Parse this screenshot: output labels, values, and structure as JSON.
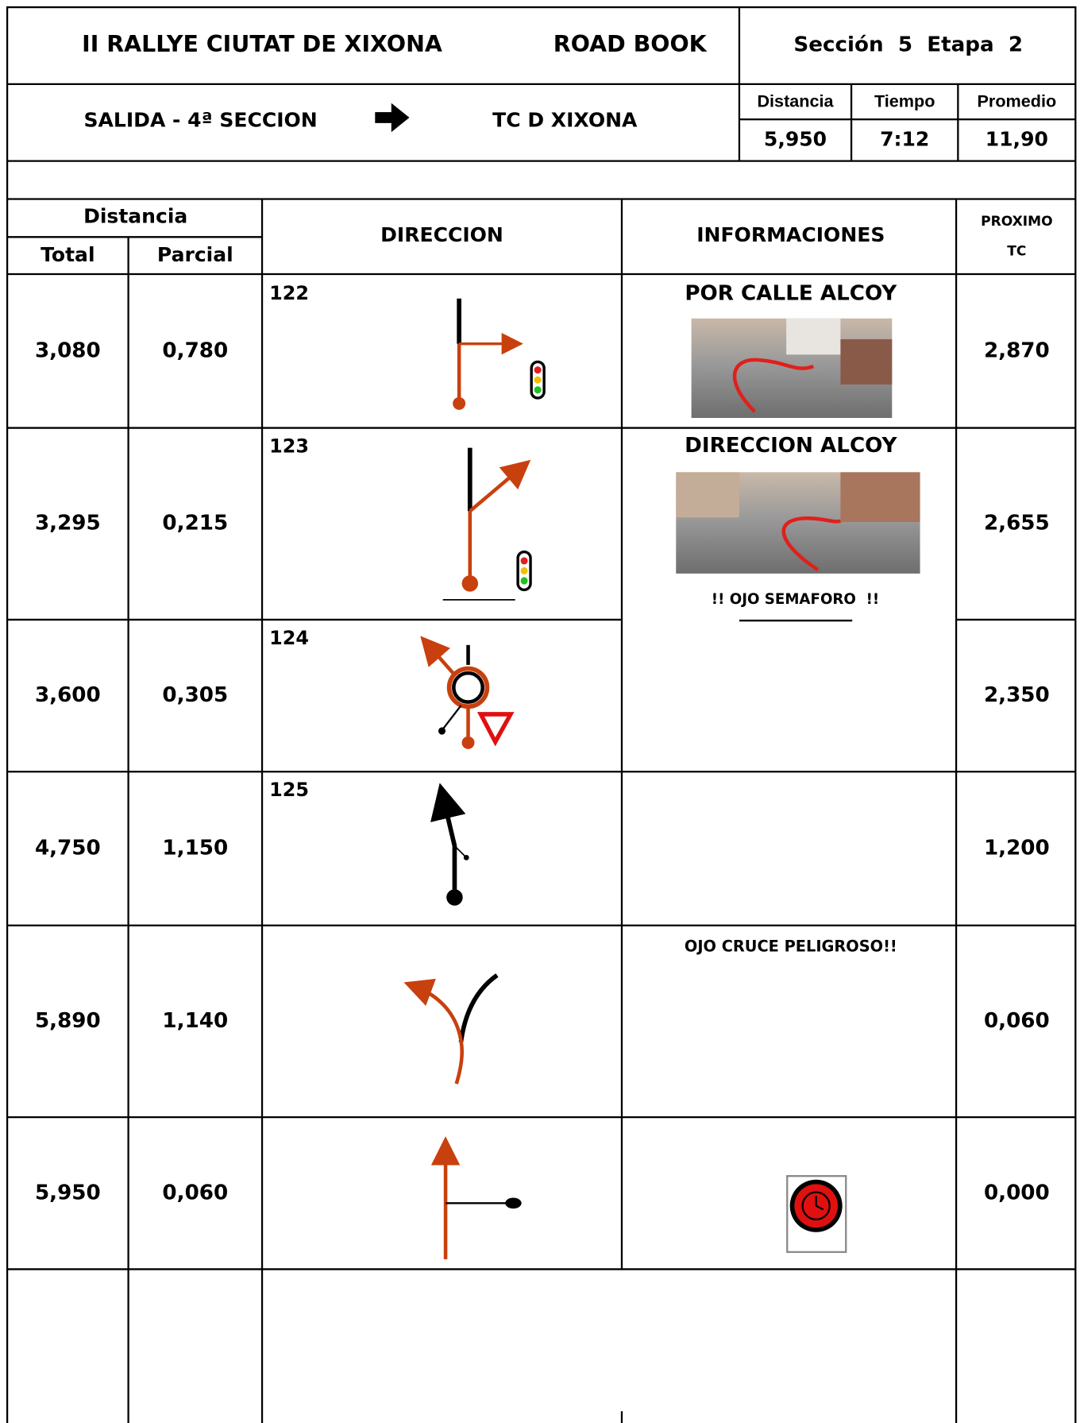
{
  "header": {
    "title": "II RALLYE CIUTAT DE XIXONA",
    "document": "ROAD BOOK",
    "section": "Sección  5  Etapa  2"
  },
  "route": {
    "from": "SALIDA - 4ª SECCION",
    "to": "TC D XIXONA"
  },
  "summary": {
    "labels": [
      "Distancia",
      "Tiempo",
      "Promedio"
    ],
    "values": [
      "5,950",
      "7:12",
      "11,90"
    ]
  },
  "table": {
    "headers": {
      "distance": "Distancia",
      "total": "Total",
      "partial": "Parcial",
      "direction": "DIRECCION",
      "info": "INFORMACIONES",
      "next": [
        "PROXIMO",
        "TC"
      ]
    },
    "rows": [
      {
        "total": "3,080",
        "partial": "0,780",
        "number": "122",
        "info": "POR CALLE ALCOY",
        "next": "2,870"
      },
      {
        "total": "3,295",
        "partial": "0,215",
        "number": "123",
        "info": "DIRECCION ALCOY",
        "note": "!! OJO SEMAFORO  !!",
        "next": "2,655"
      },
      {
        "total": "3,600",
        "partial": "0,305",
        "number": "124",
        "next": "2,350"
      },
      {
        "total": "4,750",
        "partial": "1,150",
        "number": "125",
        "next": "1,200"
      },
      {
        "total": "5,890",
        "partial": "1,140",
        "info": "OJO CRUCE PELIGROSO!!",
        "next": "0,060"
      },
      {
        "total": "5,950",
        "partial": "0,060",
        "next": "0,000"
      }
    ]
  }
}
